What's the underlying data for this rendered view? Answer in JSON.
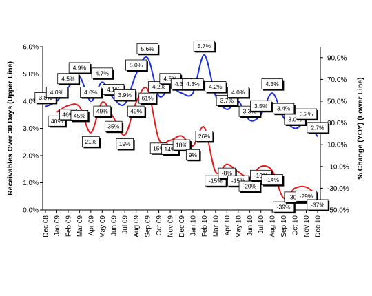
{
  "chart_data": {
    "type": "line",
    "categories": [
      "Dec 08",
      "Jan 09",
      "Feb 09",
      "Mar 09",
      "Apr 09",
      "May 09",
      "Jun 09",
      "Jul 09",
      "Aug 09",
      "Sep 09",
      "Oct 09",
      "Nov 09",
      "Dec 09",
      "Jan 10",
      "Feb 10",
      "Mar 10",
      "Apr 10",
      "May 10",
      "Jun 10",
      "Jul 10",
      "Aug 10",
      "Sep 10",
      "Oct 10",
      "Nov 10",
      "Dec 10"
    ],
    "ylabel_left": "Receivables Over 30 Days (Upper Line)",
    "ylabel_right": "% Change (YOY) (Lower Line)",
    "y_left_ticks": [
      "0.0%",
      "1.0%",
      "2.0%",
      "3.0%",
      "4.0%",
      "5.0%",
      "6.0%"
    ],
    "y_left_range": [
      0,
      6
    ],
    "y_right_ticks": [
      "-50.0%",
      "-30.0%",
      "-10.0%",
      "10.0%",
      "30.0%",
      "50.0%",
      "70.0%",
      "90.0%"
    ],
    "y_right_range": [
      -50,
      100
    ],
    "grid": false,
    "series": [
      {
        "axis": "left",
        "color": "#1a2fe6",
        "values": [
          3.8,
          4.0,
          4.5,
          4.9,
          4.0,
          4.7,
          4.1,
          3.9,
          5.0,
          5.6,
          4.2,
          4.5,
          4.3,
          4.3,
          5.7,
          4.2,
          3.7,
          4.0,
          3.3,
          3.5,
          4.3,
          3.4,
          3.0,
          3.2,
          2.7
        ],
        "labels": [
          "3.8%",
          "4.0%",
          "4.5%",
          "4.9%",
          "4.0%",
          "4.7%",
          "4.1%",
          "3.9%",
          "5.0%",
          "5.6%",
          "4.2%",
          "4.5%",
          "4.3%",
          "4.3%",
          "5.7%",
          "4.2%",
          "3.7%",
          "4.0%",
          "3.3%",
          "3.5%",
          "4.3%",
          "3.4%",
          "3.0%",
          "3.2%",
          "2.7%"
        ]
      },
      {
        "axis": "right",
        "color": "#e61a1a",
        "values": [
          null,
          40,
          46,
          45,
          21,
          49,
          35,
          19,
          49,
          61,
          15,
          14,
          18,
          9,
          26,
          -15,
          -8,
          -15,
          -20,
          -10,
          -14,
          -39,
          -30,
          -29,
          -37
        ],
        "labels": [
          "",
          "40%",
          "46%",
          "45%",
          "21%",
          "49%",
          "35%",
          "19%",
          "49%",
          "61%",
          "15%",
          "14%",
          "18%",
          "9%",
          "26%",
          "-15%",
          "-8%",
          "-15%",
          "-20%",
          "-10%",
          "-14%",
          "-39%",
          "-30%",
          "-29%",
          "-37%"
        ]
      }
    ]
  }
}
